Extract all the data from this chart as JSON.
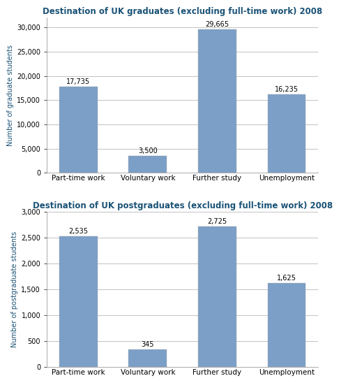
{
  "grad_title": "Destination of UK graduates (excluding full-time work) 2008",
  "postgrad_title": "Destination of UK postgraduates (excluding full-time work) 2008",
  "categories": [
    "Part-time work",
    "Voluntary work",
    "Further study",
    "Unemployment"
  ],
  "grad_values": [
    17735,
    3500,
    29665,
    16235
  ],
  "postgrad_values": [
    2535,
    345,
    2725,
    1625
  ],
  "grad_labels": [
    "17,735",
    "3,500",
    "29,665",
    "16,235"
  ],
  "postgrad_labels": [
    "2,535",
    "345",
    "2,725",
    "1,625"
  ],
  "bar_color": "#7B9FC7",
  "grad_ylabel": "Number of graduate students",
  "postgrad_ylabel": "Number of postgraduate students",
  "grad_ylim": [
    0,
    32000
  ],
  "postgrad_ylim": [
    0,
    3000
  ],
  "grad_yticks": [
    0,
    5000,
    10000,
    15000,
    20000,
    25000,
    30000
  ],
  "postgrad_yticks": [
    0,
    500,
    1000,
    1500,
    2000,
    2500,
    3000
  ],
  "title_color": "#1A5276",
  "ylabel_color": "#1A5276",
  "title_fontsize": 8.5,
  "label_fontsize": 7,
  "ylabel_fontsize": 7,
  "tick_fontsize": 7,
  "xtick_fontsize": 7.5
}
